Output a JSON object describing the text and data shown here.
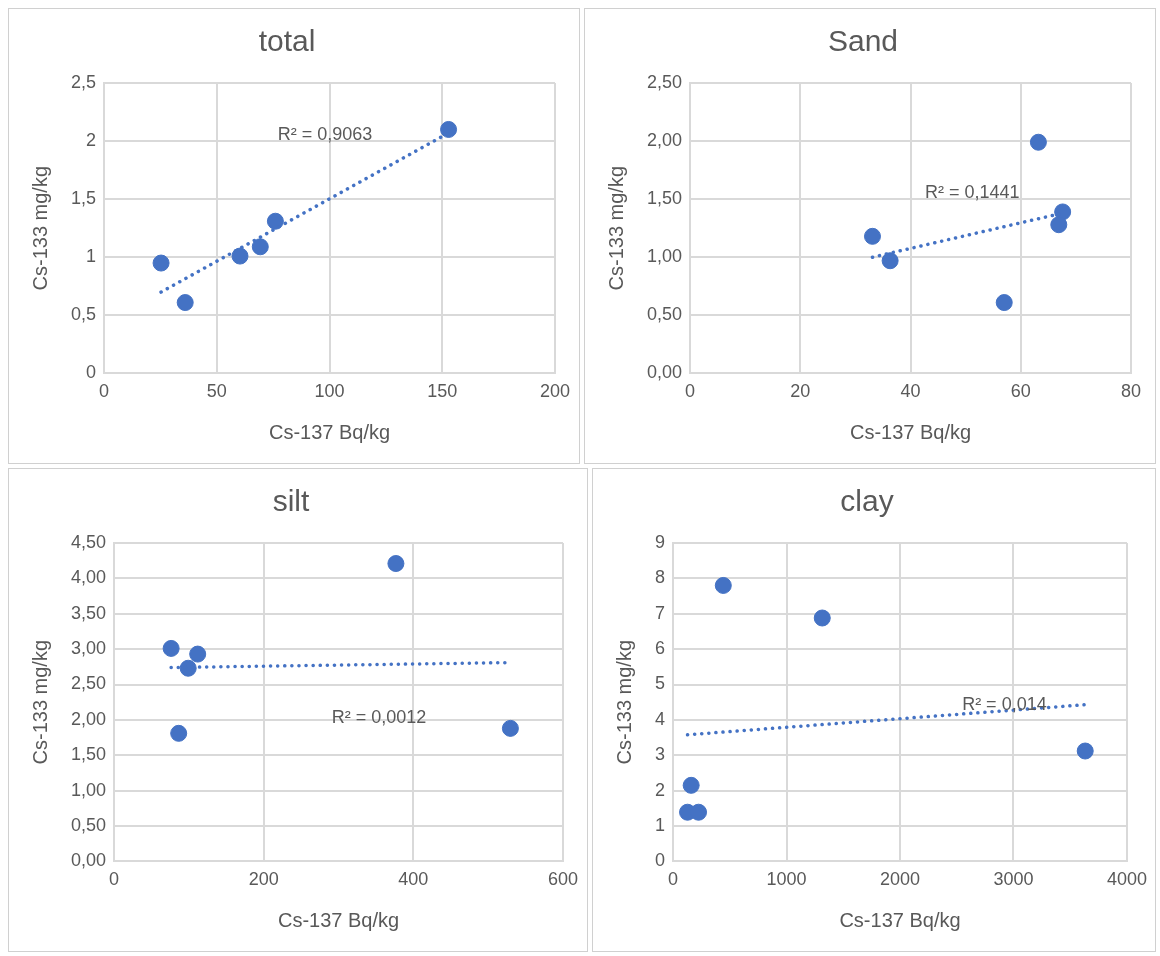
{
  "chart_data": [
    {
      "type": "scatter",
      "title": "total",
      "xlabel": "Cs-137 Bq/kg",
      "ylabel": "Cs-133 mg/kg",
      "xlim": [
        0,
        200
      ],
      "xticks": [
        0,
        50,
        100,
        150,
        200
      ],
      "ylim": [
        0,
        2.5
      ],
      "yticks": [
        0,
        {
          "value": 0.5,
          "label": "0,5"
        },
        1,
        {
          "value": 1.5,
          "label": "1,5"
        },
        2,
        {
          "value": 2.5,
          "label": "2,5"
        }
      ],
      "grid": true,
      "legend": false,
      "series": [
        {
          "type": "scatter",
          "color": "#4472c4",
          "marker": "circle",
          "x": [
            25.3,
            36,
            60.3,
            69.3,
            76,
            152.8
          ],
          "values": [
            0.95,
            0.61,
            1.01,
            1.09,
            1.31,
            2.1
          ]
        },
        {
          "type": "line",
          "color": "#4472c4",
          "marker": "none",
          "line_style": "dotted",
          "x": [
            25.3,
            152.8
          ],
          "values": [
            0.7,
            2.07
          ]
        }
      ],
      "annotations": [
        "R² = 0,9063"
      ]
    },
    {
      "type": "scatter",
      "title": "Sand",
      "xlabel": "Cs-137 Bq/kg",
      "ylabel": "Cs-133 mg/kg",
      "xlim": [
        0,
        80
      ],
      "xticks": [
        0,
        20,
        40,
        60,
        80
      ],
      "ylim": [
        0,
        2.5
      ],
      "yticks": [
        {
          "value": 0,
          "label": "0,00"
        },
        {
          "value": 0.5,
          "label": "0,50"
        },
        {
          "value": 1,
          "label": "1,00"
        },
        {
          "value": 1.5,
          "label": "1,50"
        },
        {
          "value": 2,
          "label": "2,00"
        },
        {
          "value": 2.5,
          "label": "2,50"
        }
      ],
      "grid": true,
      "legend": false,
      "series": [
        {
          "type": "scatter",
          "color": "#4472c4",
          "marker": "circle",
          "x": [
            33.1,
            36.3,
            57,
            63.2,
            67.6,
            66.9
          ],
          "values": [
            1.18,
            0.97,
            0.61,
            1.99,
            1.39,
            1.28
          ]
        },
        {
          "type": "line",
          "color": "#4472c4",
          "marker": "none",
          "line_style": "dotted",
          "x": [
            33.1,
            67.6
          ],
          "values": [
            1.0,
            1.38
          ]
        }
      ],
      "annotations": [
        "R² = 0,1441"
      ]
    },
    {
      "type": "scatter",
      "title": "silt",
      "xlabel": "Cs-137 Bq/kg",
      "ylabel": "Cs-133 mg/kg",
      "xlim": [
        0,
        600
      ],
      "xticks": [
        0,
        200,
        400,
        600
      ],
      "ylim": [
        0,
        4.5
      ],
      "yticks": [
        {
          "value": 0,
          "label": "0,00"
        },
        {
          "value": 0.5,
          "label": "0,50"
        },
        {
          "value": 1,
          "label": "1,00"
        },
        {
          "value": 1.5,
          "label": "1,50"
        },
        {
          "value": 2,
          "label": "2,00"
        },
        {
          "value": 2.5,
          "label": "2,50"
        },
        {
          "value": 3,
          "label": "3,00"
        },
        {
          "value": 3.5,
          "label": "3,50"
        },
        {
          "value": 4,
          "label": "4,00"
        },
        {
          "value": 4.5,
          "label": "4,50"
        }
      ],
      "grid": true,
      "legend": false,
      "series": [
        {
          "type": "scatter",
          "color": "#4472c4",
          "marker": "circle",
          "x": [
            76.3,
            86.4,
            99.1,
            111.8,
            376.7,
            529.7
          ],
          "values": [
            3.01,
            1.81,
            2.73,
            2.93,
            4.21,
            1.88
          ]
        },
        {
          "type": "line",
          "color": "#4472c4",
          "marker": "none",
          "line_style": "dotted",
          "x": [
            76.3,
            529.7
          ],
          "values": [
            2.74,
            2.81
          ]
        }
      ],
      "annotations": [
        "R² = 0,0012"
      ]
    },
    {
      "type": "scatter",
      "title": "clay",
      "xlabel": "Cs-137 Bq/kg",
      "ylabel": "Cs-133 mg/kg",
      "xlim": [
        0,
        4000
      ],
      "xticks": [
        0,
        1000,
        2000,
        3000,
        4000
      ],
      "ylim": [
        0,
        9
      ],
      "yticks": [
        0,
        1,
        2,
        3,
        4,
        5,
        6,
        7,
        8,
        9
      ],
      "grid": true,
      "legend": false,
      "series": [
        {
          "type": "scatter",
          "color": "#4472c4",
          "marker": "circle",
          "x": [
            128,
            225,
            160,
            443,
            1315,
            3632
          ],
          "values": [
            1.39,
            1.39,
            2.15,
            7.8,
            6.88,
            3.12
          ]
        },
        {
          "type": "line",
          "color": "#4472c4",
          "marker": "none",
          "line_style": "dotted",
          "x": [
            128,
            3632
          ],
          "values": [
            3.58,
            4.43
          ]
        }
      ],
      "annotations": [
        "R² = 0,014"
      ]
    }
  ]
}
